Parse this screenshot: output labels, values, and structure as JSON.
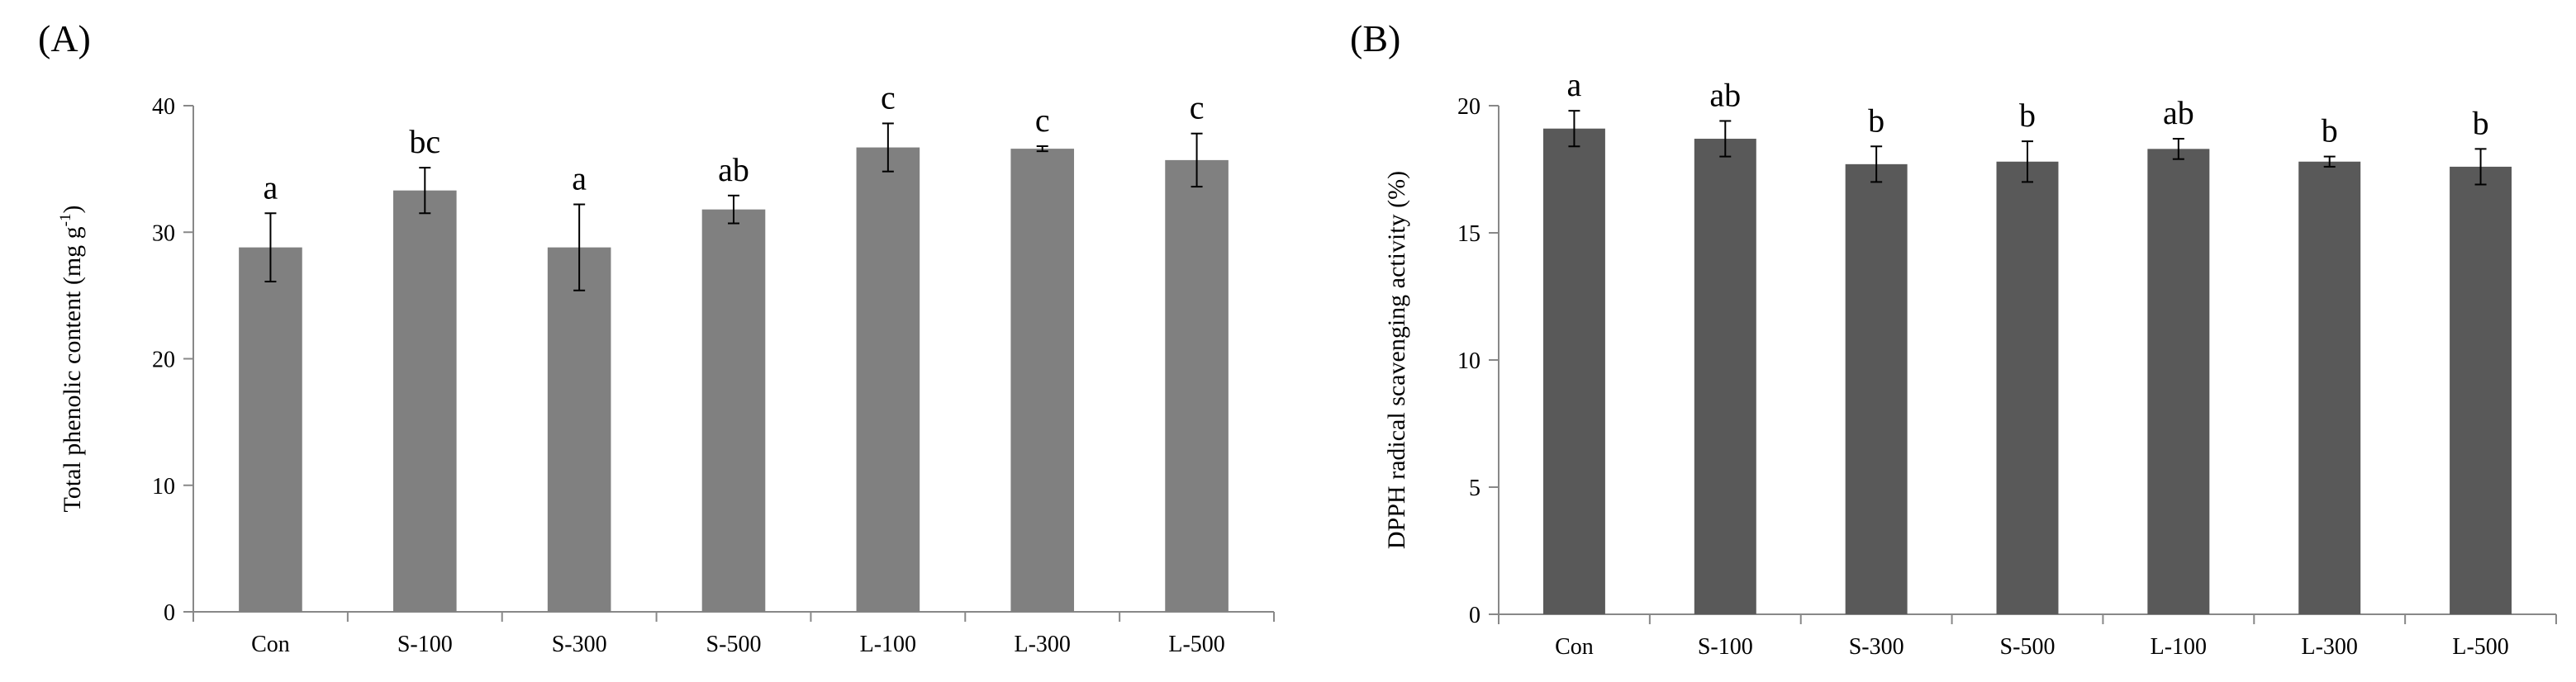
{
  "chart_data": [
    {
      "type": "bar",
      "panel_label": "(A)",
      "title": "",
      "xlabel": "",
      "ylabel": "Total phenolic content (mg g",
      "ylabel_sup": "-1",
      "ylabel_end": ")",
      "ylim": [
        0,
        40
      ],
      "yticks": [
        0,
        10,
        20,
        30,
        40
      ],
      "categories": [
        "Con",
        "S-100",
        "S-300",
        "S-500",
        "L-100",
        "L-300",
        "L-500"
      ],
      "values": [
        28.8,
        33.3,
        28.8,
        31.8,
        36.7,
        36.6,
        35.7
      ],
      "errors": [
        2.7,
        1.8,
        3.4,
        1.1,
        1.9,
        0.2,
        2.1
      ],
      "significance": [
        "a",
        "bc",
        "a",
        "ab",
        "c",
        "c",
        "c"
      ],
      "bar_color": "#808080",
      "grid": false,
      "legend": "none"
    },
    {
      "type": "bar",
      "panel_label": "(B)",
      "title": "",
      "xlabel": "",
      "ylabel": "DPPH radical scavenging activity (%)",
      "ylabel_sup": "",
      "ylabel_end": "",
      "ylim": [
        0,
        20
      ],
      "yticks": [
        0,
        5,
        10,
        15,
        20
      ],
      "categories": [
        "Con",
        "S-100",
        "S-300",
        "S-500",
        "L-100",
        "L-300",
        "L-500"
      ],
      "values": [
        19.1,
        18.7,
        17.7,
        17.8,
        18.3,
        17.8,
        17.6
      ],
      "errors": [
        0.7,
        0.7,
        0.7,
        0.8,
        0.4,
        0.2,
        0.7
      ],
      "significance": [
        "a",
        "ab",
        "b",
        "b",
        "ab",
        "b",
        "b"
      ],
      "bar_color": "#595959",
      "grid": false,
      "legend": "none"
    }
  ]
}
